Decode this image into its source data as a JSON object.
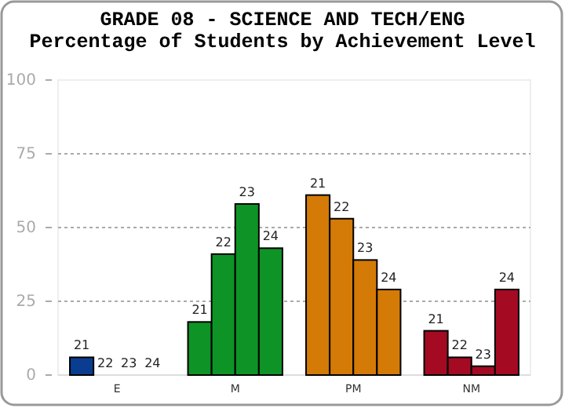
{
  "chart_data": {
    "type": "bar",
    "title": "GRADE 08 - SCIENCE AND TECH/ENG",
    "subtitle": "Percentage of Students by Achievement Level",
    "categories": [
      "E",
      "M",
      "PM",
      "NM"
    ],
    "series": [
      {
        "name": "21",
        "colors": [
          "#0a3d8f",
          "#0e9426",
          "#d47a06",
          "#a50a23"
        ],
        "values": [
          6,
          18,
          61,
          15
        ]
      },
      {
        "name": "22",
        "colors": [
          "#0a3d8f",
          "#0e9426",
          "#d47a06",
          "#a50a23"
        ],
        "values": [
          0,
          41,
          53,
          6
        ]
      },
      {
        "name": "23",
        "colors": [
          "#0a3d8f",
          "#0e9426",
          "#d47a06",
          "#a50a23"
        ],
        "values": [
          0,
          58,
          39,
          3
        ]
      },
      {
        "name": "24",
        "colors": [
          "#0a3d8f",
          "#0e9426",
          "#d47a06",
          "#a50a23"
        ],
        "values": [
          0,
          43,
          29,
          29
        ]
      }
    ],
    "ylim": [
      0,
      100
    ],
    "yticks": [
      0,
      25,
      50,
      75,
      100
    ],
    "grid": "y",
    "legend": false
  }
}
